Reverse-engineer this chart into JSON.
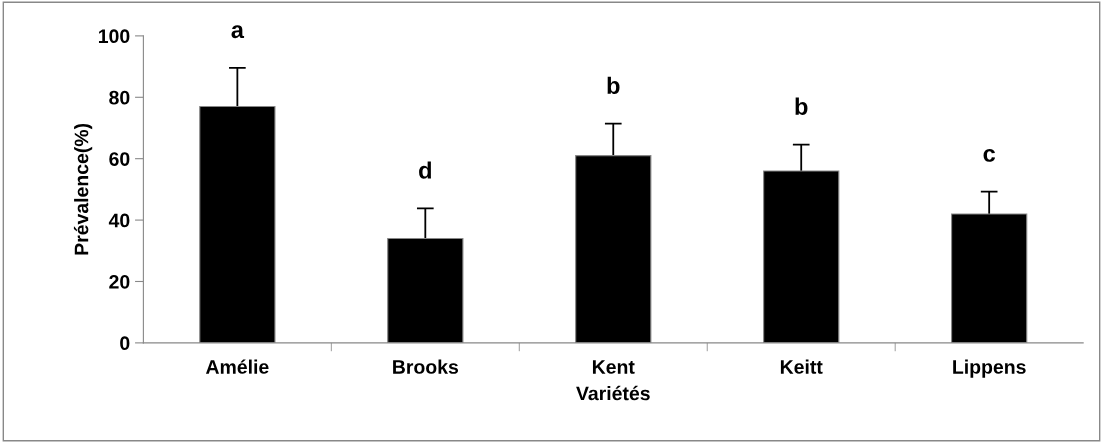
{
  "chart_data": {
    "type": "bar",
    "xlabel": "Variétés",
    "ylabel": "Prévalence(%)",
    "categories": [
      "Amélie",
      "Brooks",
      "Kent",
      "Keitt",
      "Lippens"
    ],
    "values": [
      77,
      34,
      61,
      56,
      42
    ],
    "errors": [
      12.6,
      9.8,
      10.4,
      8.6,
      7.3
    ],
    "color": "#000000",
    "ylim": [
      0,
      100
    ],
    "yticks": [
      0,
      20,
      40,
      60,
      80,
      100
    ],
    "grid": false,
    "annotations": [
      "a",
      "d",
      "b",
      "b",
      "c"
    ]
  }
}
